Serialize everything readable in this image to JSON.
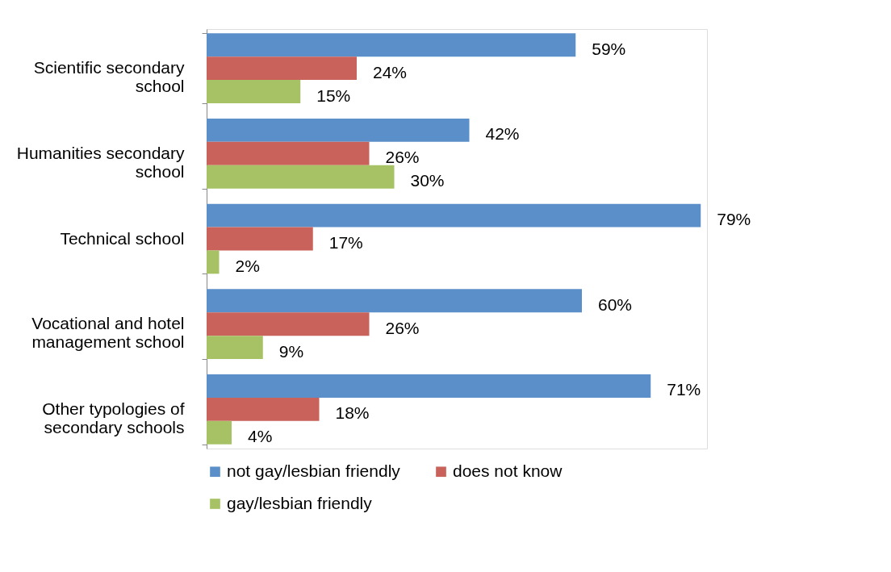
{
  "chart_data": {
    "type": "bar",
    "orientation": "horizontal",
    "legend": "bottom",
    "categories": [
      "Scientific secondary school",
      "Humanities secondary school",
      "Technical school",
      "Vocational and hotel management school",
      "Other typologies of secondary schools"
    ],
    "series": [
      {
        "name": "not gay/lesbian friendly",
        "color": "#5b8fc9",
        "values": [
          59,
          42,
          79,
          60,
          71
        ],
        "value_labels": [
          "59%",
          "42%",
          "79%",
          "60%",
          "71%"
        ]
      },
      {
        "name": "does not know",
        "color": "#c8625a",
        "values": [
          24,
          26,
          17,
          26,
          18
        ],
        "value_labels": [
          "24%",
          "26%",
          "17%",
          "26%",
          "18%"
        ]
      },
      {
        "name": "gay/lesbian friendly",
        "color": "#a6c264",
        "values": [
          15,
          30,
          2,
          9,
          4
        ],
        "value_labels": [
          "15%",
          "30%",
          "2%",
          "9%",
          "4%"
        ]
      }
    ]
  }
}
